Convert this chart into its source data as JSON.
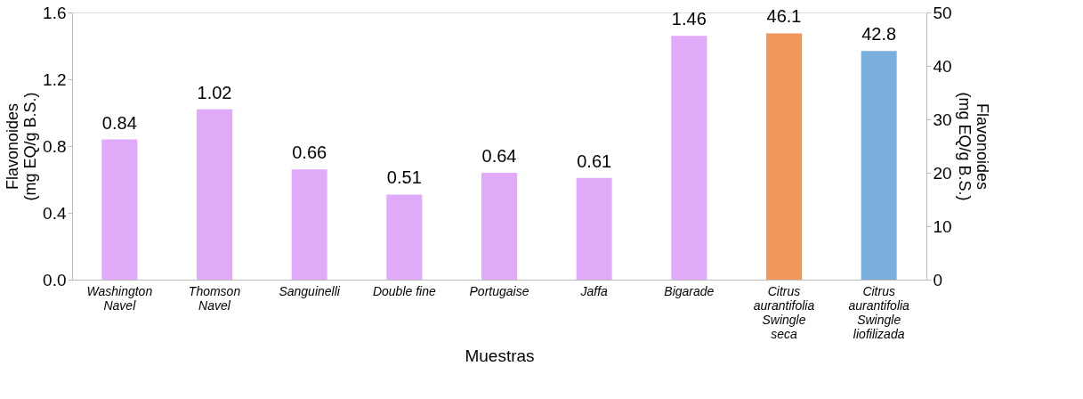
{
  "chart_data": {
    "type": "bar",
    "xlabel": "Muestras",
    "ylabel": "Flavonoides\n(mg EQ/g B.S.)",
    "y2label": "Flavonoides\n(mg EQ/g B.S.)",
    "categories": [
      "Washington\nNavel",
      "Thomson\nNavel",
      "Sanguinelli",
      "Double fine",
      "Portugaise",
      "Jaffa",
      "Bigarade",
      "Citrus\naurantifolia\nSwingle\nseca",
      "Citrus\naurantifolia\nSwingle\nliofilizada"
    ],
    "series": [
      {
        "color": "#e0aaf8",
        "values": [
          0.84,
          1.02,
          0.66,
          0.51,
          0.64,
          0.61,
          1.46,
          null,
          null
        ]
      },
      {
        "color": "#f0985a",
        "axis": "y2",
        "values": [
          null,
          null,
          null,
          null,
          null,
          null,
          null,
          46.1,
          null
        ]
      },
      {
        "color": "#7aafdd",
        "axis": "y2",
        "values": [
          null,
          null,
          null,
          null,
          null,
          null,
          null,
          null,
          42.8
        ]
      }
    ],
    "ylim": [
      0,
      1.6
    ],
    "yticks": [
      {
        "value": 0,
        "label": "0.0"
      },
      0.4,
      0.8,
      1.2,
      1.6
    ],
    "y2lim": [
      0,
      50
    ],
    "y2ticks": [
      0,
      10,
      20,
      30,
      40,
      50
    ],
    "data_labels": true,
    "grid": false,
    "legend": false
  }
}
